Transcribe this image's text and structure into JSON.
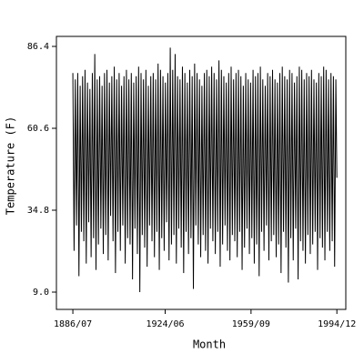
{
  "chart_data": {
    "type": "line",
    "x_label": "Month",
    "y_label": "Temperature (F)",
    "x": [
      "1886/07",
      "1887/01",
      "1887/07",
      "1888/01",
      "1888/07",
      "1889/01",
      "1889/07",
      "1890/01",
      "1890/07",
      "1891/01",
      "1891/07",
      "1892/01",
      "1892/07",
      "1893/01",
      "1893/07",
      "1894/01",
      "1894/07",
      "1895/01",
      "1895/07",
      "1896/01",
      "1896/07",
      "1897/01",
      "1897/07",
      "1898/01",
      "1898/07",
      "1899/01",
      "1899/07",
      "1900/01",
      "1900/07",
      "1901/01",
      "1901/07",
      "1902/01",
      "1902/07",
      "1903/01",
      "1903/07",
      "1904/01",
      "1904/07",
      "1905/01",
      "1905/07",
      "1906/01",
      "1906/07",
      "1907/01",
      "1907/07",
      "1908/01",
      "1908/07",
      "1909/01",
      "1909/07",
      "1910/01",
      "1910/07",
      "1911/01",
      "1911/07",
      "1912/01",
      "1912/07",
      "1913/01",
      "1913/07",
      "1914/01",
      "1914/07",
      "1915/01",
      "1915/07",
      "1916/01",
      "1916/07",
      "1917/01",
      "1917/07",
      "1918/01",
      "1918/07",
      "1919/01",
      "1919/07",
      "1920/01",
      "1920/07",
      "1921/01",
      "1921/07",
      "1922/01",
      "1922/07",
      "1923/01",
      "1923/07",
      "1924/01",
      "1924/07",
      "1925/01",
      "1925/07",
      "1926/01",
      "1926/07",
      "1927/01",
      "1927/07",
      "1928/01",
      "1928/07",
      "1929/01",
      "1929/07",
      "1930/01",
      "1930/07",
      "1931/01",
      "1931/07",
      "1932/01",
      "1932/07",
      "1933/01",
      "1933/07",
      "1934/01",
      "1934/07",
      "1935/01",
      "1935/07",
      "1936/01",
      "1936/07",
      "1937/01",
      "1937/07",
      "1938/01",
      "1938/07",
      "1939/01",
      "1939/07",
      "1940/01",
      "1940/07",
      "1941/01",
      "1941/07",
      "1942/01",
      "1942/07",
      "1943/01",
      "1943/07",
      "1944/01",
      "1944/07",
      "1945/01",
      "1945/07",
      "1946/01",
      "1946/07",
      "1947/01",
      "1947/07",
      "1948/01",
      "1948/07",
      "1949/01",
      "1949/07",
      "1950/01",
      "1950/07",
      "1951/01",
      "1951/07",
      "1952/01",
      "1952/07",
      "1953/01",
      "1953/07",
      "1954/01",
      "1954/07",
      "1955/01",
      "1955/07",
      "1956/01",
      "1956/07",
      "1957/01",
      "1957/07",
      "1958/01",
      "1958/07",
      "1959/01",
      "1959/07",
      "1960/01",
      "1960/07",
      "1961/01",
      "1961/07",
      "1962/01",
      "1962/07",
      "1963/01",
      "1963/07",
      "1964/01",
      "1964/07",
      "1965/01",
      "1965/07",
      "1966/01",
      "1966/07",
      "1967/01",
      "1967/07",
      "1968/01",
      "1968/07",
      "1969/01",
      "1969/07",
      "1970/01",
      "1970/07",
      "1971/01",
      "1971/07",
      "1972/01",
      "1972/07",
      "1973/01",
      "1973/07",
      "1974/01",
      "1974/07",
      "1975/01",
      "1975/07",
      "1976/01",
      "1976/07",
      "1977/01",
      "1977/07",
      "1978/01",
      "1978/07",
      "1979/01",
      "1979/07",
      "1980/01",
      "1980/07",
      "1981/01",
      "1981/07",
      "1982/01",
      "1982/07",
      "1983/01",
      "1983/07",
      "1984/01",
      "1984/07",
      "1985/01",
      "1985/07",
      "1986/01",
      "1986/07",
      "1987/01",
      "1987/07",
      "1988/01",
      "1988/07",
      "1989/01",
      "1989/07",
      "1990/01",
      "1990/07",
      "1991/01",
      "1991/07",
      "1992/01",
      "1992/07",
      "1993/01",
      "1993/07",
      "1994/01",
      "1994/07",
      "1994/12"
    ],
    "series": [
      {
        "color": "#000000",
        "values": [
          78,
          22,
          76,
          30,
          78,
          14,
          74,
          28,
          77,
          25,
          79,
          18,
          75,
          31,
          73,
          20,
          78,
          26,
          84,
          16,
          76,
          24,
          77,
          29,
          74,
          21,
          78,
          27,
          79,
          19,
          75,
          33,
          77,
          25,
          80,
          15,
          76,
          28,
          78,
          22,
          74,
          30,
          77,
          18,
          79,
          26,
          76,
          24,
          78,
          13,
          75,
          29,
          77,
          21,
          80,
          9,
          78,
          27,
          76,
          23,
          79,
          17,
          74,
          30,
          77,
          25,
          78,
          20,
          76,
          28,
          81,
          16,
          79,
          26,
          77,
          22,
          75,
          31,
          78,
          19,
          86,
          24,
          79,
          27,
          84,
          18,
          77,
          29,
          76,
          23,
          80,
          15,
          78,
          28,
          75,
          21,
          79,
          26,
          77,
          10,
          81,
          30,
          78,
          24,
          76,
          20,
          74,
          27,
          78,
          22,
          79,
          18,
          77,
          29,
          80,
          25,
          78,
          21,
          76,
          28,
          82,
          17,
          79,
          24,
          77,
          30,
          75,
          22,
          78,
          19,
          80,
          27,
          76,
          25,
          78,
          20,
          79,
          28,
          77,
          16,
          74,
          23,
          78,
          29,
          76,
          21,
          75,
          26,
          79,
          18,
          77,
          24,
          78,
          14,
          80,
          28,
          76,
          22,
          74,
          30,
          78,
          19,
          77,
          25,
          79,
          27,
          76,
          20,
          75,
          24,
          78,
          15,
          80,
          28,
          77,
          23,
          76,
          12,
          79,
          26,
          78,
          19,
          75,
          29,
          77,
          13,
          80,
          25,
          79,
          22,
          76,
          18,
          78,
          27,
          77,
          21,
          79,
          24,
          76,
          28,
          75,
          16,
          78,
          26,
          77,
          23,
          80,
          19,
          79,
          28,
          76,
          22,
          78,
          25,
          77,
          17,
          76,
          45
        ]
      }
    ],
    "xlim": [
      "1879/10",
      "1998/08"
    ],
    "xticks": [
      "1886/07",
      "1924/06",
      "1959/09",
      "1994/12"
    ],
    "ylim": [
      3.55,
      89.55
    ],
    "yticks": [
      {
        "value": 9,
        "label": "9.0"
      },
      34.8,
      60.6,
      86.4
    ]
  }
}
